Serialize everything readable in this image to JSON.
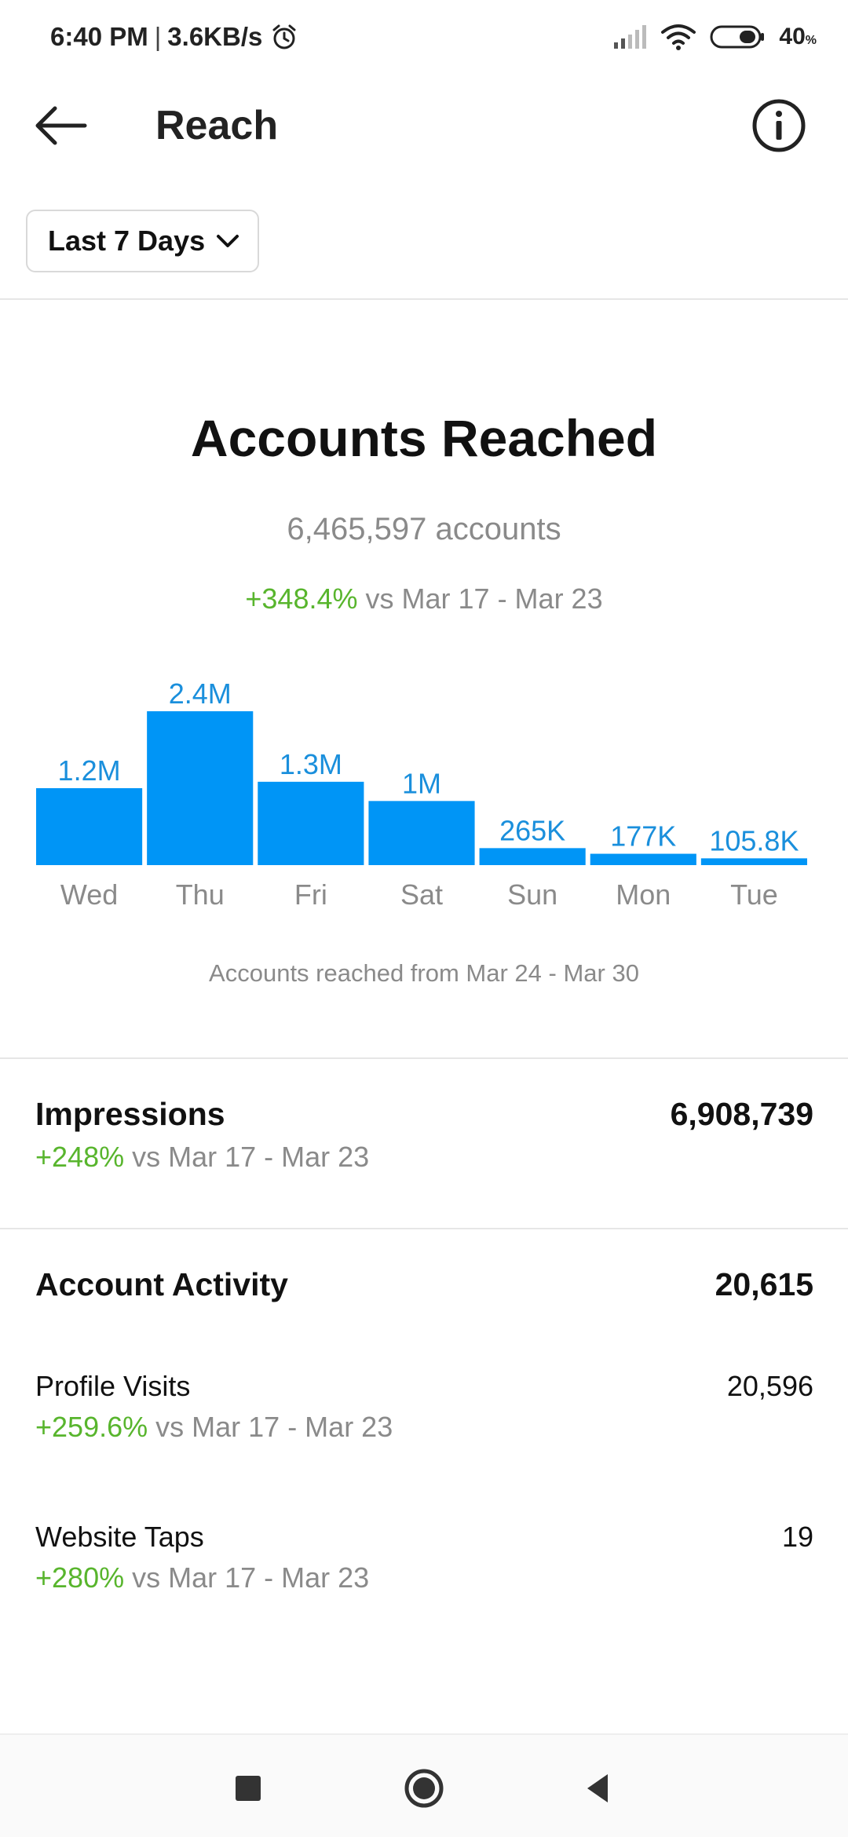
{
  "status_bar": {
    "time": "6:40 PM",
    "network_speed": "3.6KB/s",
    "battery_level": "40",
    "battery_unit": "%"
  },
  "header": {
    "title": "Reach",
    "back_icon": "arrow-left-icon",
    "info_icon": "info-icon"
  },
  "filter": {
    "label": "Last 7 Days",
    "icon": "chevron-down-icon"
  },
  "reached": {
    "title": "Accounts Reached",
    "count": "6,465,597 accounts",
    "change": "+348.4%",
    "compare": "vs Mar 17 - Mar 23",
    "caption": "Accounts reached from Mar 24 - Mar 30"
  },
  "chart_data": {
    "type": "bar",
    "categories": [
      "Wed",
      "Thu",
      "Fri",
      "Sat",
      "Sun",
      "Mon",
      "Tue"
    ],
    "values": [
      1200000,
      2400000,
      1300000,
      1000000,
      265000,
      177000,
      105800
    ],
    "data_labels": [
      "1.2M",
      "2.4M",
      "1.3M",
      "1M",
      "265K",
      "177K",
      "105.8K"
    ],
    "bar_color": "#0095f6",
    "label_color": "#1a8fdc"
  },
  "impressions": {
    "title": "Impressions",
    "value": "6,908,739",
    "change": "+248%",
    "compare": "vs Mar 17 - Mar 23"
  },
  "account_activity": {
    "title": "Account Activity",
    "value": "20,615",
    "items": [
      {
        "label": "Profile Visits",
        "value": "20,596",
        "change": "+259.6%",
        "compare": "vs Mar 17 - Mar 23"
      },
      {
        "label": "Website Taps",
        "value": "19",
        "change": "+280%",
        "compare": "vs Mar 17 - Mar 23"
      }
    ]
  },
  "colors": {
    "positive": "#58b52d",
    "muted": "#8a8a8a",
    "accent": "#0095f6"
  },
  "nav_bar": {
    "recents_icon": "square-icon",
    "home_icon": "circle-icon",
    "back_icon": "triangle-back-icon"
  }
}
